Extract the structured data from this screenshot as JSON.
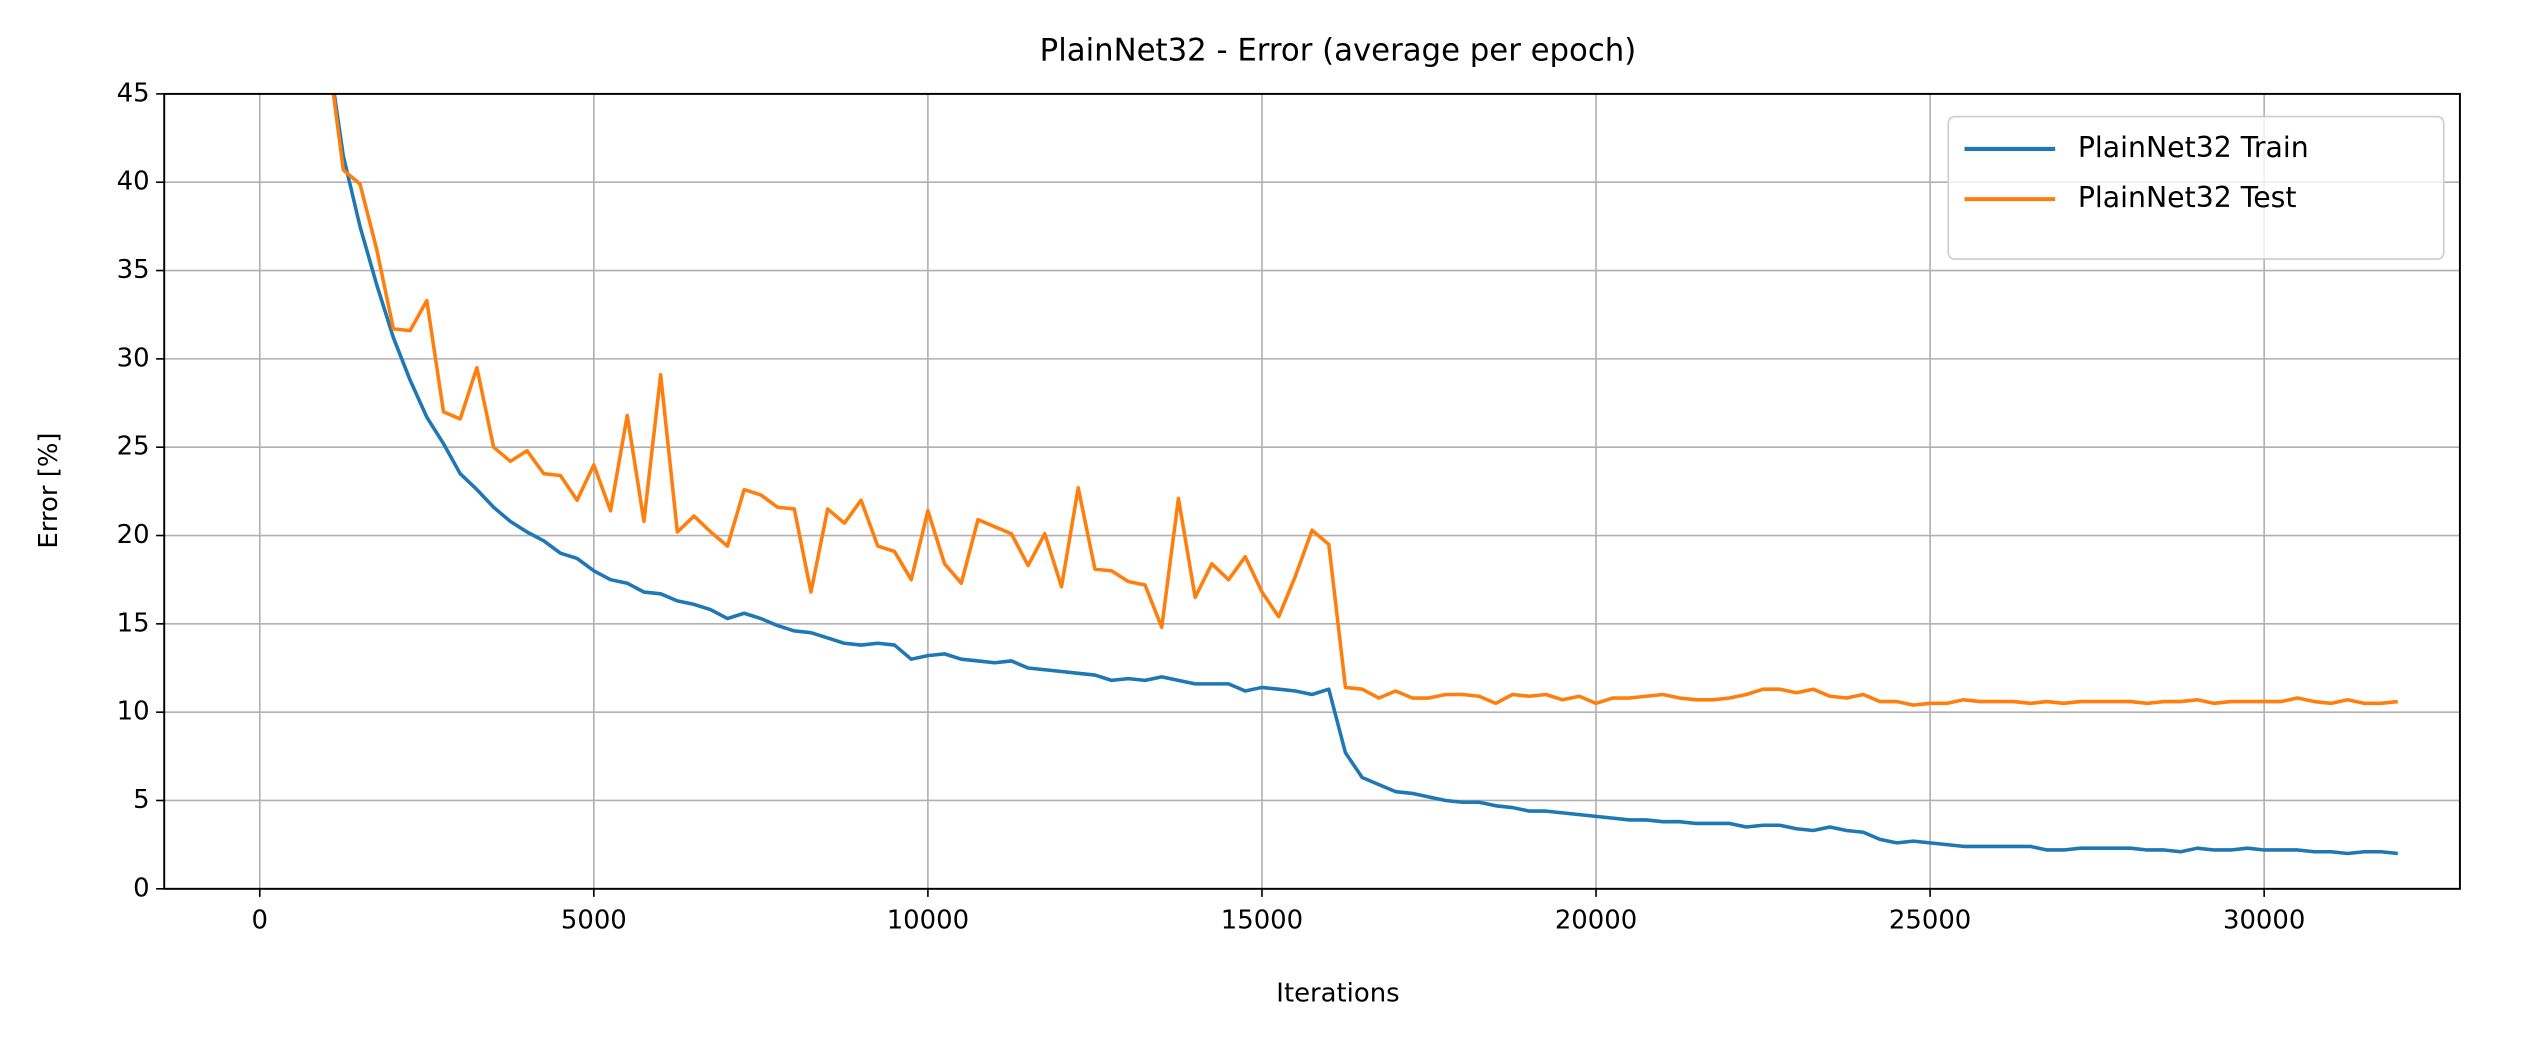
{
  "chart_data": {
    "type": "line",
    "title": "PlainNet32 - Error (average per epoch)",
    "x_label": "Iterations",
    "y_label": "Error [%]",
    "x": [
      1000,
      1250,
      1500,
      1750,
      2000,
      2250,
      2500,
      2750,
      3000,
      3250,
      3500,
      3750,
      4000,
      4250,
      4500,
      4750,
      5000,
      5250,
      5500,
      5750,
      6000,
      6250,
      6500,
      6750,
      7000,
      7250,
      7500,
      7750,
      8000,
      8250,
      8500,
      8750,
      9000,
      9250,
      9500,
      9750,
      10000,
      10250,
      10500,
      10750,
      11000,
      11250,
      11500,
      11750,
      12000,
      12250,
      12500,
      12750,
      13000,
      13250,
      13500,
      13750,
      14000,
      14250,
      14500,
      14750,
      15000,
      15250,
      15500,
      15750,
      16000,
      16250,
      16500,
      16750,
      17000,
      17250,
      17500,
      17750,
      18000,
      18250,
      18500,
      18750,
      19000,
      19250,
      19500,
      19750,
      20000,
      20250,
      20500,
      20750,
      21000,
      21250,
      21500,
      21750,
      22000,
      22250,
      22500,
      22750,
      23000,
      23250,
      23500,
      23750,
      24000,
      24250,
      24500,
      24750,
      25000,
      25250,
      25500,
      25750,
      26000,
      26250,
      26500,
      26750,
      27000,
      27250,
      27500,
      27750,
      28000,
      28250,
      28500,
      28750,
      29000,
      29250,
      29500,
      29750,
      30000,
      30250,
      30500,
      30750,
      31000,
      31250,
      31500,
      31750,
      32000
    ],
    "series": [
      {
        "name": "PlainNet32 Train",
        "color": "#1f77b4",
        "values": [
          48,
          41.5,
          37.5,
          34.2,
          31.2,
          28.8,
          26.7,
          25.2,
          23.5,
          22.6,
          21.6,
          20.8,
          20.2,
          19.7,
          19.0,
          18.7,
          18.0,
          17.5,
          17.3,
          16.8,
          16.7,
          16.3,
          16.1,
          15.8,
          15.3,
          15.6,
          15.3,
          14.9,
          14.6,
          14.5,
          14.2,
          13.9,
          13.8,
          13.9,
          13.8,
          13.0,
          13.2,
          13.3,
          13.0,
          12.9,
          12.8,
          12.9,
          12.5,
          12.4,
          12.3,
          12.2,
          12.1,
          11.8,
          11.9,
          11.8,
          12.0,
          11.8,
          11.6,
          11.6,
          11.6,
          11.2,
          11.4,
          11.3,
          11.2,
          11.0,
          11.3,
          7.7,
          6.3,
          5.9,
          5.5,
          5.4,
          5.2,
          5.0,
          4.9,
          4.9,
          4.7,
          4.6,
          4.4,
          4.4,
          4.3,
          4.2,
          4.1,
          4.0,
          3.9,
          3.9,
          3.8,
          3.8,
          3.7,
          3.7,
          3.7,
          3.5,
          3.6,
          3.6,
          3.4,
          3.3,
          3.5,
          3.3,
          3.2,
          2.8,
          2.6,
          2.7,
          2.6,
          2.5,
          2.4,
          2.4,
          2.4,
          2.4,
          2.4,
          2.2,
          2.2,
          2.3,
          2.3,
          2.3,
          2.3,
          2.2,
          2.2,
          2.1,
          2.3,
          2.2,
          2.2,
          2.3,
          2.2,
          2.2,
          2.2,
          2.1,
          2.1,
          2.0,
          2.1,
          2.1,
          2.0
        ]
      },
      {
        "name": "PlainNet32 Test",
        "color": "#ff7f0e",
        "values": [
          48,
          40.7,
          39.9,
          36.2,
          31.7,
          31.6,
          33.3,
          27.0,
          26.6,
          29.5,
          25.0,
          24.2,
          24.8,
          23.5,
          23.4,
          22.0,
          24.0,
          21.4,
          26.8,
          20.8,
          29.1,
          20.2,
          21.1,
          20.2,
          19.4,
          22.6,
          22.3,
          21.6,
          21.5,
          16.8,
          21.5,
          20.7,
          22.0,
          19.4,
          19.1,
          17.5,
          21.4,
          18.4,
          17.3,
          20.9,
          20.5,
          20.1,
          18.3,
          20.1,
          17.1,
          22.7,
          18.1,
          18.0,
          17.4,
          17.2,
          14.8,
          22.1,
          16.5,
          18.4,
          17.5,
          18.8,
          16.8,
          15.4,
          17.7,
          20.3,
          19.5,
          11.4,
          11.3,
          10.8,
          11.2,
          10.8,
          10.8,
          11.0,
          11.0,
          10.9,
          10.5,
          11.0,
          10.9,
          11.0,
          10.7,
          10.9,
          10.5,
          10.8,
          10.8,
          10.9,
          11.0,
          10.8,
          10.7,
          10.7,
          10.8,
          11.0,
          11.3,
          11.3,
          11.1,
          11.3,
          10.9,
          10.8,
          11.0,
          10.6,
          10.6,
          10.4,
          10.5,
          10.5,
          10.7,
          10.6,
          10.6,
          10.6,
          10.5,
          10.6,
          10.5,
          10.6,
          10.6,
          10.6,
          10.6,
          10.5,
          10.6,
          10.6,
          10.7,
          10.5,
          10.6,
          10.6,
          10.6,
          10.6,
          10.8,
          10.6,
          10.5,
          10.7,
          10.5,
          10.5,
          10.6
        ]
      }
    ],
    "xlim": [
      -1430,
      32930
    ],
    "ylim": [
      0,
      45
    ],
    "xticks": [
      0,
      5000,
      10000,
      15000,
      20000,
      25000,
      30000
    ],
    "yticks": [
      0,
      5,
      10,
      15,
      20,
      25,
      30,
      35,
      40,
      45
    ],
    "grid": true,
    "legend": "upper-right"
  }
}
